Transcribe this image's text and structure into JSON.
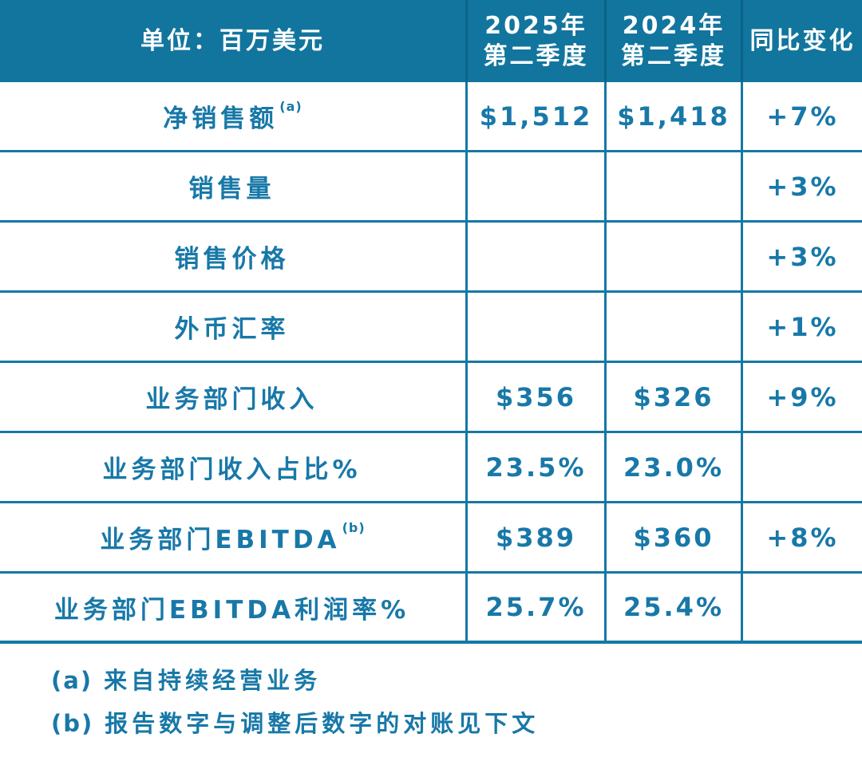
{
  "colors": {
    "header_background": "#12759E",
    "header_text": "#FFFFFF",
    "body_text": "#1878A8",
    "border": "#1478A6",
    "page_background": "#FFFFFF"
  },
  "chart_data": {
    "type": "table",
    "unit_header": "单位：百万美元",
    "columns": [
      {
        "line1": "2025年",
        "line2": "第二季度"
      },
      {
        "line1": "2024年",
        "line2": "第二季度"
      },
      {
        "line1": "同比变化",
        "line2": ""
      }
    ],
    "rows": [
      {
        "label": "净销售额",
        "sup": "(a)",
        "q2_2025": "$1,512",
        "q2_2024": "$1,418",
        "yoy": "+7%"
      },
      {
        "label": "销售量",
        "sup": "",
        "q2_2025": "",
        "q2_2024": "",
        "yoy": "+3%"
      },
      {
        "label": "销售价格",
        "sup": "",
        "q2_2025": "",
        "q2_2024": "",
        "yoy": "+3%"
      },
      {
        "label": "外币汇率",
        "sup": "",
        "q2_2025": "",
        "q2_2024": "",
        "yoy": "+1%"
      },
      {
        "label": "业务部门收入",
        "sup": "",
        "q2_2025": "$356",
        "q2_2024": "$326",
        "yoy": "+9%"
      },
      {
        "label": "业务部门收入占比%",
        "sup": "",
        "q2_2025": "23.5%",
        "q2_2024": "23.0%",
        "yoy": ""
      },
      {
        "label": "业务部门EBITDA",
        "sup": "(b)",
        "q2_2025": "$389",
        "q2_2024": "$360",
        "yoy": "+8%"
      },
      {
        "label": "业务部门EBITDA利润率%",
        "sup": "",
        "q2_2025": "25.7%",
        "q2_2024": "25.4%",
        "yoy": ""
      }
    ],
    "footnotes": [
      {
        "marker": "(a)",
        "text": "来自持续经营业务"
      },
      {
        "marker": "(b)",
        "text": "报告数字与调整后数字的对账见下文"
      }
    ]
  }
}
